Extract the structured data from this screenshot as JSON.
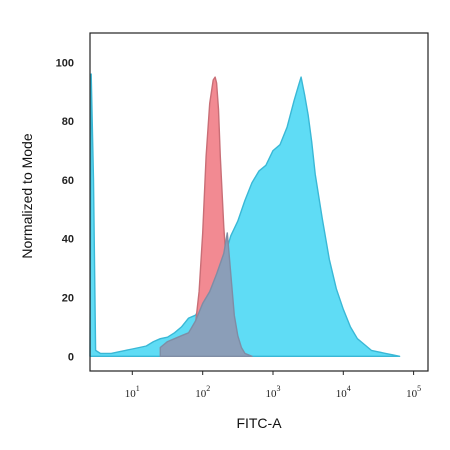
{
  "chart_data": {
    "type": "area",
    "xlabel": "FITC-A",
    "ylabel": "Normalized to Mode",
    "x_scale": "log",
    "xlim": [
      2.5,
      160000
    ],
    "ylim": [
      -5,
      110
    ],
    "x_ticks": [
      {
        "value": 10,
        "base": "10",
        "exp": "1"
      },
      {
        "value": 100,
        "base": "10",
        "exp": "2"
      },
      {
        "value": 1000,
        "base": "10",
        "exp": "3"
      },
      {
        "value": 10000,
        "base": "10",
        "exp": "4"
      },
      {
        "value": 100000,
        "base": "10",
        "exp": "5"
      }
    ],
    "y_ticks": [
      0,
      20,
      40,
      60,
      80,
      100
    ],
    "grid": false,
    "legend": false,
    "series": [
      {
        "color": "#5fdcf5",
        "stroke": "#3ab8d6",
        "x": [
          2.5,
          2.6,
          2.8,
          3.0,
          3.5,
          4.0,
          5.0,
          6.3,
          8.0,
          10,
          12.6,
          15.8,
          20,
          25,
          31.6,
          39.8,
          50,
          63,
          79,
          100,
          126,
          158,
          200,
          251,
          316,
          398,
          501,
          631,
          794,
          1000,
          1259,
          1585,
          1995,
          2300,
          2512,
          2818,
          3162,
          3548,
          3981,
          5012,
          6310,
          7943,
          10000,
          12589,
          15849,
          19953,
          25119,
          31623,
          39811,
          50119,
          63096
        ],
        "values": [
          0,
          96,
          60,
          2,
          1,
          1,
          1,
          1.5,
          2,
          2.5,
          3,
          3.5,
          5,
          6,
          6.5,
          8,
          10,
          13,
          14,
          18,
          21,
          26,
          33,
          41,
          46,
          53,
          59,
          63,
          65,
          70,
          72,
          78,
          87,
          92,
          95,
          89,
          82,
          73,
          62,
          47,
          33,
          23,
          16,
          10,
          6,
          4,
          2,
          1.5,
          1,
          0.5,
          0
        ]
      },
      {
        "color": "#f28a92",
        "stroke": "#c96e76",
        "x": [
          45,
          56,
          63,
          71,
          79,
          89,
          100,
          112,
          126,
          141,
          150,
          158,
          168,
          178,
          200,
          224,
          251,
          282,
          316,
          355,
          398,
          501
        ],
        "values": [
          0,
          1,
          3,
          6,
          11,
          22,
          42,
          68,
          86,
          94,
          95,
          93,
          84,
          68,
          44,
          26,
          14,
          7,
          3,
          1,
          0.5,
          0
        ]
      },
      {
        "color": "#8b9eb8",
        "stroke": "#7f8da5",
        "x": [
          25,
          31.6,
          39.8,
          50,
          63,
          79,
          100,
          126,
          158,
          200,
          224,
          251,
          282,
          316,
          355,
          398,
          501
        ],
        "values": [
          3,
          5,
          6,
          7,
          8,
          12,
          18,
          22,
          28,
          35,
          42,
          28,
          14,
          7,
          3,
          1,
          0
        ]
      }
    ]
  }
}
